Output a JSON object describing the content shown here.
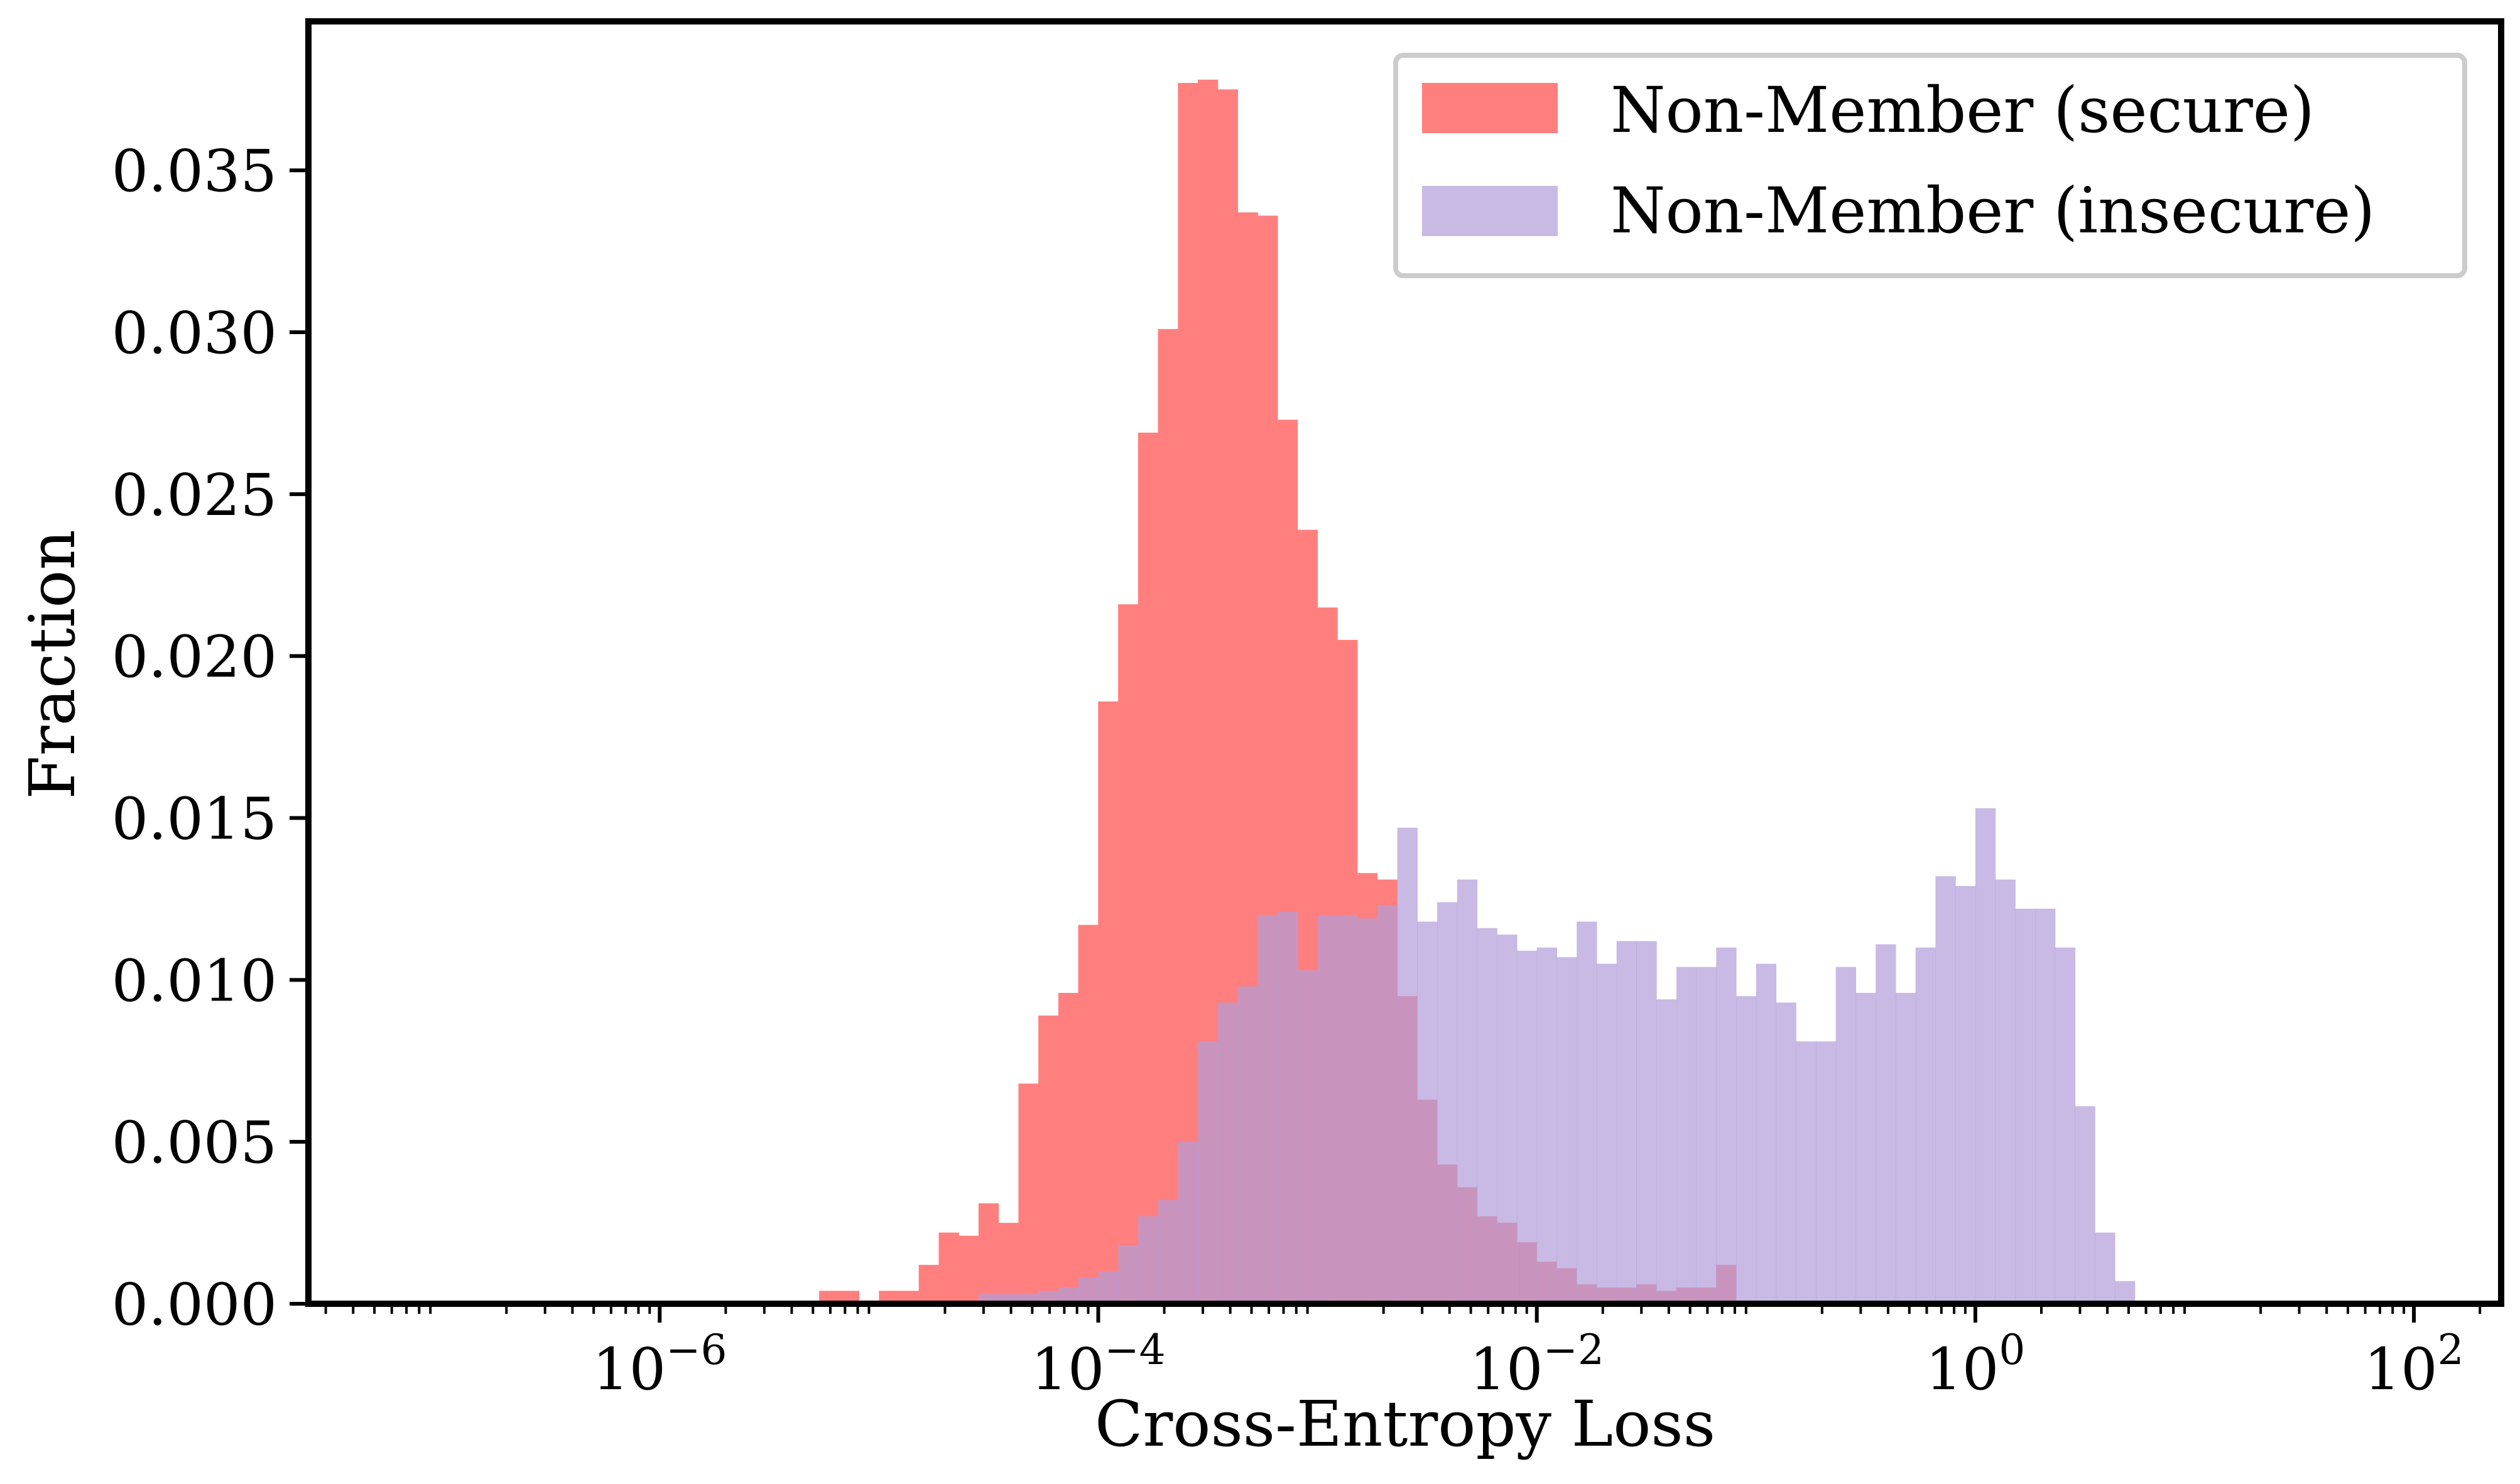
{
  "chart_data": {
    "type": "bar",
    "xlabel": "Cross-Entropy Loss",
    "ylabel": "Fraction",
    "x_scale": "log",
    "xlim": [
      2.5e-08,
      250
    ],
    "ylim": [
      0,
      0.0396
    ],
    "x_ticks": [
      {
        "value": 1e-06,
        "base": "10",
        "exp": "−6"
      },
      {
        "value": 0.0001,
        "base": "10",
        "exp": "−4"
      },
      {
        "value": 0.01,
        "base": "10",
        "exp": "−2"
      },
      {
        "value": 1,
        "base": "10",
        "exp": "0"
      },
      {
        "value": 100,
        "base": "10",
        "exp": "2"
      }
    ],
    "y_ticks": [
      {
        "value": 0.0,
        "label": "0.000"
      },
      {
        "value": 0.005,
        "label": "0.005"
      },
      {
        "value": 0.01,
        "label": "0.010"
      },
      {
        "value": 0.015,
        "label": "0.015"
      },
      {
        "value": 0.02,
        "label": "0.020"
      },
      {
        "value": 0.025,
        "label": "0.025"
      },
      {
        "value": 0.03,
        "label": "0.030"
      },
      {
        "value": 0.035,
        "label": "0.035"
      }
    ],
    "grid": false,
    "legend_position": "top-right",
    "bin_log_width": 0.0909,
    "series": [
      {
        "name": "Non-Member (secure)",
        "color": "#ff7f7f",
        "opacity": 1.0,
        "bins_start_log10": -5.273,
        "values": [
          0.0004,
          0.0004,
          0.0001,
          0.0004,
          0.0004,
          0.0012,
          0.0022,
          0.0021,
          0.0031,
          0.0025,
          0.0068,
          0.0089,
          0.0096,
          0.0117,
          0.0186,
          0.0216,
          0.0269,
          0.0301,
          0.0377,
          0.0378,
          0.0375,
          0.0337,
          0.0336,
          0.0273,
          0.0239,
          0.0215,
          0.0205,
          0.0133,
          0.0131,
          0.0095,
          0.0063,
          0.0043,
          0.0036,
          0.0027,
          0.0025,
          0.0019,
          0.0013,
          0.0011,
          0.0006,
          0.0005,
          0.0005,
          0.0006,
          0.0004,
          0.0005,
          0.0005,
          0.0012,
          0.0001
        ]
      },
      {
        "name": "Non-Member (insecure)",
        "color": "#b19cd9",
        "opacity": 0.7,
        "bins_start_log10": -4.545,
        "values": [
          0.0003,
          0.0003,
          0.0003,
          0.0004,
          0.0005,
          0.0008,
          0.001,
          0.0018,
          0.0027,
          0.0032,
          0.005,
          0.0081,
          0.0093,
          0.0098,
          0.012,
          0.0121,
          0.0103,
          0.012,
          0.012,
          0.0119,
          0.0123,
          0.0147,
          0.0118,
          0.0124,
          0.0131,
          0.0116,
          0.0114,
          0.0109,
          0.011,
          0.0107,
          0.0118,
          0.0105,
          0.0112,
          0.0112,
          0.0094,
          0.0104,
          0.0104,
          0.011,
          0.0095,
          0.0105,
          0.0093,
          0.0081,
          0.0081,
          0.0104,
          0.0096,
          0.0111,
          0.0096,
          0.011,
          0.0132,
          0.0129,
          0.0153,
          0.0131,
          0.0122,
          0.0122,
          0.011,
          0.0061,
          0.0022,
          0.0007
        ]
      }
    ]
  }
}
